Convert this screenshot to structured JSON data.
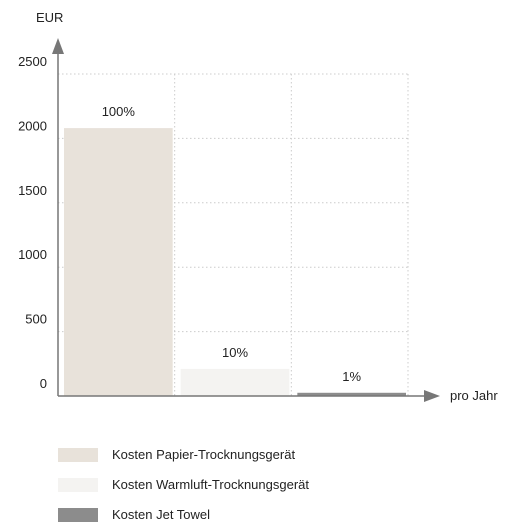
{
  "chart_data": {
    "type": "bar",
    "ylabel": "EUR",
    "xlabel": "pro Jahr",
    "ylim": [
      0,
      2500
    ],
    "yticks": [
      0,
      500,
      1000,
      1500,
      2000,
      2500
    ],
    "grid": true,
    "legend_position": "bottom",
    "series": [
      {
        "name": "Kosten Papier-Trocknungsgerät",
        "value": 2080,
        "label": "100%",
        "color": "#e8e2da"
      },
      {
        "name": "Kosten Warmluft-Trocknungsgerät",
        "value": 210,
        "label": "10%",
        "color": "#f4f3f1"
      },
      {
        "name": "Kosten Jet Towel",
        "value": 25,
        "label": "1%",
        "color": "#8c8c8c"
      }
    ]
  }
}
